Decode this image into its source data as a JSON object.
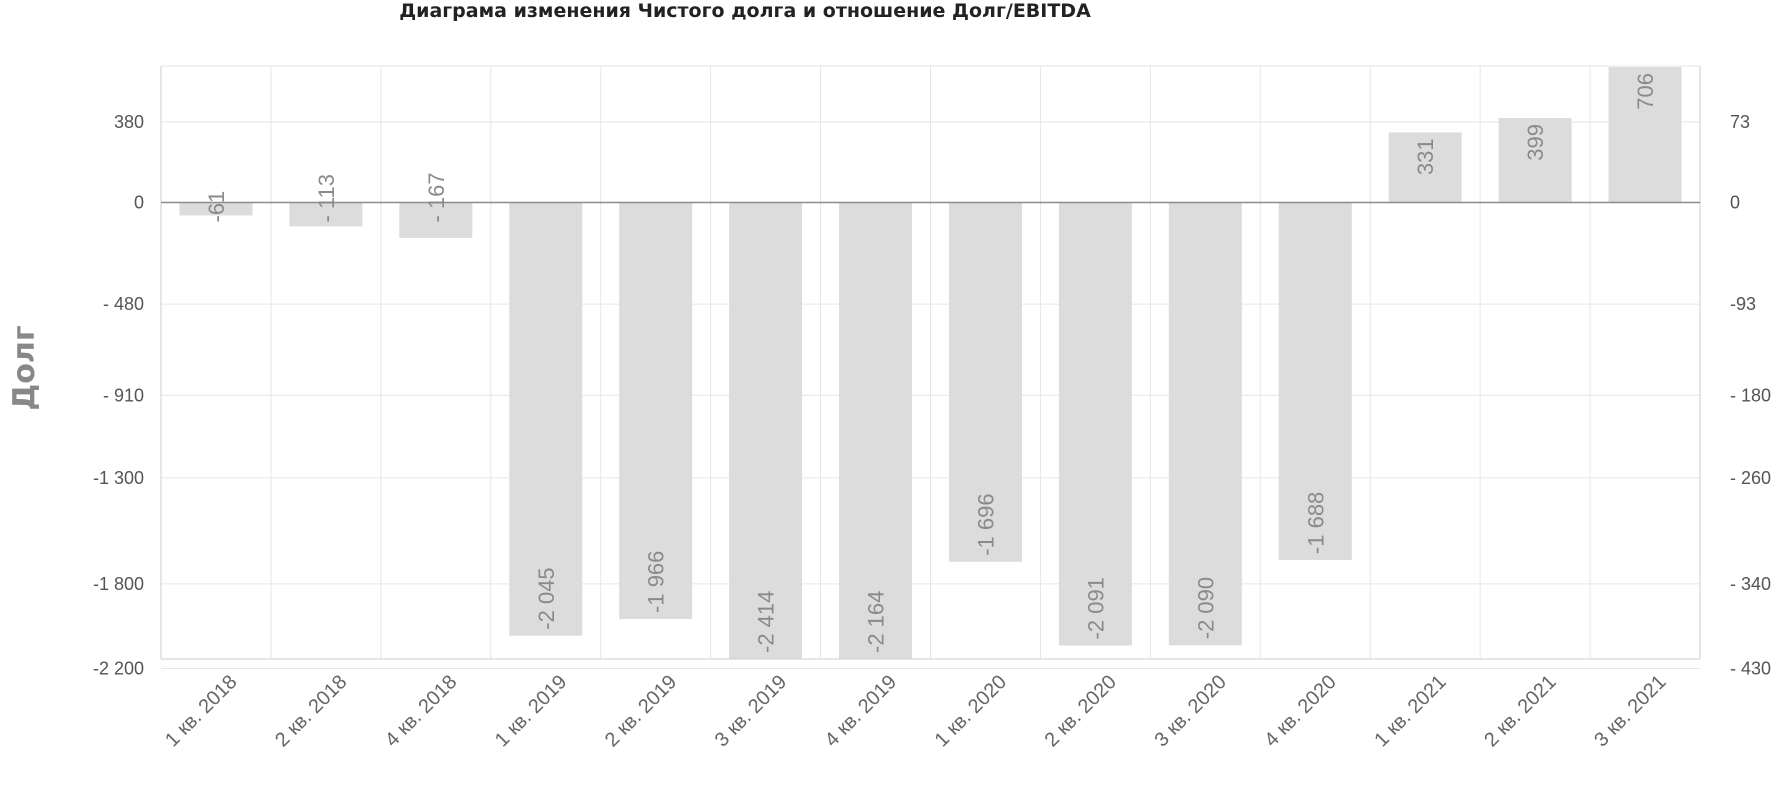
{
  "chart_data": {
    "type": "bar",
    "title": "Диаграма изменения Чистого долга и отношение Долг/EBITDA",
    "ylabel": "Долг",
    "categories": [
      "1 кв. 2018",
      "2 кв. 2018",
      "4 кв. 2018",
      "1 кв. 2019",
      "2 кв. 2019",
      "3 кв. 2019",
      "4 кв. 2019",
      "1 кв. 2020",
      "2 кв. 2020",
      "3 кв. 2020",
      "4 кв. 2020",
      "1 кв. 2021",
      "2 кв. 2021",
      "3 кв. 2021"
    ],
    "values": [
      -61,
      -113,
      -167,
      -2045,
      -1966,
      -2414,
      -2164,
      -1696,
      -2091,
      -2090,
      -1688,
      331,
      399,
      706
    ],
    "value_labels": [
      "-61",
      "- 113",
      "- 167",
      "-2 045",
      "-1 966",
      "-2 414",
      "-2 164",
      "-1 696",
      "-2 091",
      "-2 090",
      "-1 688",
      "331",
      "399",
      "706"
    ],
    "ylim": [
      -2410,
      710
    ],
    "y_ticks": [
      {
        "value": 380,
        "label": "380"
      },
      {
        "value": 0,
        "label": "0"
      },
      {
        "value": -480,
        "label": "- 480"
      },
      {
        "value": -910,
        "label": "- 910"
      },
      {
        "value": -1300,
        "label": "-1 300"
      },
      {
        "value": -1800,
        "label": "-1 800"
      },
      {
        "value": -2200,
        "label": "-2 200"
      }
    ],
    "y2_ticks": [
      "73",
      "0",
      "-93",
      "- 180",
      "- 260",
      "- 340",
      "- 430"
    ],
    "bar_color": "#dcdcdc",
    "grid": true,
    "legend": "none"
  }
}
